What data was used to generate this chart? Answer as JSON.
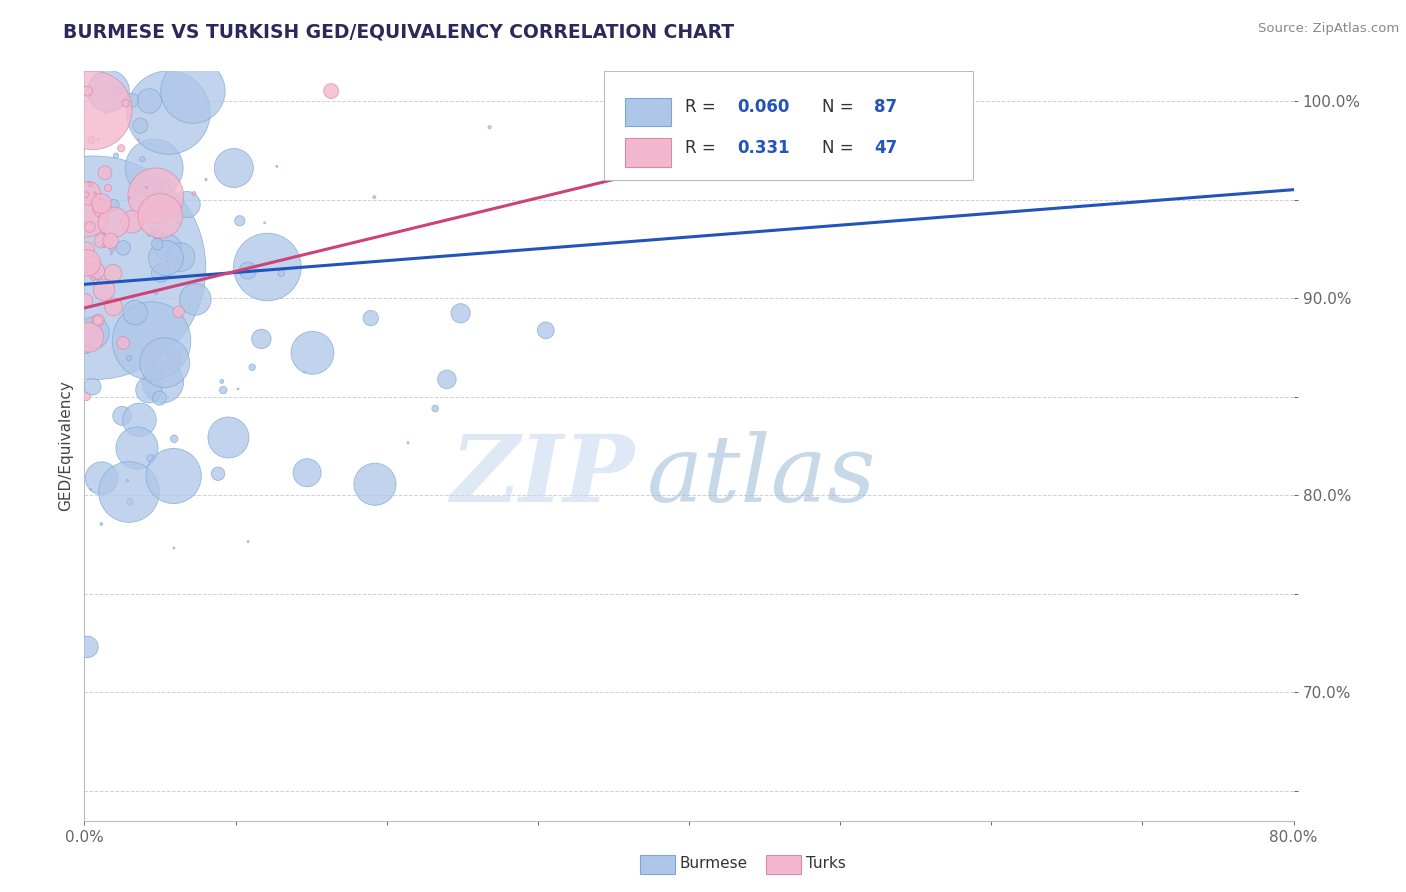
{
  "title": "BURMESE VS TURKISH GED/EQUIVALENCY CORRELATION CHART",
  "source": "Source: ZipAtlas.com",
  "ylabel": "GED/Equivalency",
  "watermark_zip": "ZIP",
  "watermark_atlas": "atlas",
  "legend": {
    "burmese_R": "0.060",
    "burmese_N": "87",
    "turks_R": "0.331",
    "turks_N": "47"
  },
  "burmese_color": "#aec6e8",
  "burmese_edge": "#7aa8d4",
  "turks_color": "#f4b8ce",
  "turks_edge": "#d88aaa",
  "burmese_line_color": "#2255bb",
  "turks_line_color": "#cc4477",
  "xmin": 0.0,
  "xmax": 0.8,
  "ymin": 0.635,
  "ymax": 1.015,
  "background_color": "#ffffff",
  "grid_color": "#cccccc",
  "ytick_color": "#4477cc",
  "title_color": "#2a2a5a",
  "source_color": "#888888"
}
